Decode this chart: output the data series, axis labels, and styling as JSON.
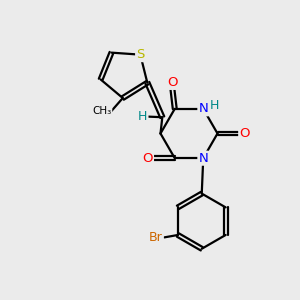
{
  "bg_color": "#ebebeb",
  "bond_color": "#000000",
  "atom_colors": {
    "S": "#b8b800",
    "N": "#0000ff",
    "O": "#ff0000",
    "Br": "#cc6600",
    "H": "#008888",
    "C": "#000000"
  },
  "figsize": [
    3.0,
    3.0
  ],
  "dpi": 100
}
